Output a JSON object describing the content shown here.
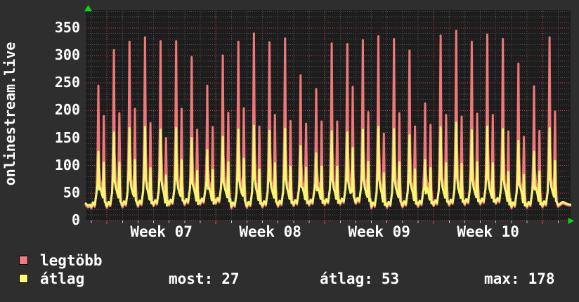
{
  "vertical_title": "onlinestream.live",
  "legend": [
    {
      "label": "legtöbb",
      "color": "#f47a7d"
    },
    {
      "label": "átlag",
      "color": "#fafa78"
    }
  ],
  "stats": [
    {
      "label": "most:",
      "value": "27"
    },
    {
      "label": "átlag:",
      "value": "53"
    },
    {
      "label": "max:",
      "value": "178"
    }
  ],
  "colors": {
    "outer_background": "#2e2e2e",
    "plot_background": "#1d1d1d",
    "minor_grid": "#4f4f4f",
    "major_grid": "#c04545",
    "day_tick": "#cccccc",
    "week_tick": "#ff4040",
    "axis_arrow": "#00dd00",
    "text": "#ffffff",
    "series_max": "#f07878",
    "series_avg": "#f7f772"
  },
  "chart_data": {
    "type": "line",
    "title": "onlinestream.live",
    "legend_position": "bottom-left",
    "grid": true,
    "y_axis": {
      "min": 0,
      "max": 383,
      "major_step": 50,
      "minor_step": 10,
      "tick_labels": [
        "0",
        "50",
        "100",
        "150",
        "200",
        "250",
        "300",
        "350"
      ]
    },
    "x_axis": {
      "unit": "day",
      "days_total": 31,
      "days_shown_from": -0.36,
      "days_shown_to": 30.8,
      "week_boundaries_day": [
        1,
        8,
        15,
        22,
        29
      ],
      "week_labels": [
        "Week 07",
        "Week 08",
        "Week 09",
        "Week 10"
      ]
    },
    "series_meta": [
      {
        "name": "legtöbb",
        "color": "#f07878",
        "role": "daily maximum viewers"
      },
      {
        "name": "átlag",
        "color": "#f7f772",
        "role": "daily average viewers"
      }
    ],
    "summary": {
      "most": 27,
      "atlag": 53,
      "max": 178
    },
    "baseline_level": 25,
    "days": [
      {
        "max": 245,
        "avg": 125,
        "mid": 190,
        "mid_avg": 105
      },
      {
        "max": 310,
        "avg": 160,
        "mid": 195,
        "mid_avg": 105
      },
      {
        "max": 325,
        "avg": 168,
        "mid": 203,
        "mid_avg": 110
      },
      {
        "max": 333,
        "avg": 170,
        "mid": 177,
        "mid_avg": 95
      },
      {
        "max": 326,
        "avg": 165,
        "mid": 150,
        "mid_avg": 82
      },
      {
        "max": 326,
        "avg": 168,
        "mid": 203,
        "mid_avg": 110
      },
      {
        "max": 297,
        "avg": 150,
        "mid": 165,
        "mid_avg": 90
      },
      {
        "max": 245,
        "avg": 128,
        "mid": 170,
        "mid_avg": 92
      },
      {
        "max": 300,
        "avg": 152,
        "mid": 196,
        "mid_avg": 106
      },
      {
        "max": 325,
        "avg": 165,
        "mid": 204,
        "mid_avg": 112
      },
      {
        "max": 340,
        "avg": 172,
        "mid": 171,
        "mid_avg": 93
      },
      {
        "max": 324,
        "avg": 163,
        "mid": 192,
        "mid_avg": 104
      },
      {
        "max": 331,
        "avg": 167,
        "mid": 181,
        "mid_avg": 98
      },
      {
        "max": 264,
        "avg": 135,
        "mid": 176,
        "mid_avg": 96
      },
      {
        "max": 239,
        "avg": 122,
        "mid": 180,
        "mid_avg": 98
      },
      {
        "max": 322,
        "avg": 162,
        "mid": 180,
        "mid_avg": 98
      },
      {
        "max": 321,
        "avg": 160,
        "mid": 243,
        "mid_avg": 132
      },
      {
        "max": 328,
        "avg": 165,
        "mid": 197,
        "mid_avg": 107
      },
      {
        "max": 335,
        "avg": 170,
        "mid": 158,
        "mid_avg": 86
      },
      {
        "max": 330,
        "avg": 166,
        "mid": 195,
        "mid_avg": 106
      },
      {
        "max": 309,
        "avg": 155,
        "mid": 171,
        "mid_avg": 93
      },
      {
        "max": 213,
        "avg": 110,
        "mid": 174,
        "mid_avg": 95
      },
      {
        "max": 336,
        "avg": 170,
        "mid": 192,
        "mid_avg": 104
      },
      {
        "max": 345,
        "avg": 178,
        "mid": 189,
        "mid_avg": 103
      },
      {
        "max": 325,
        "avg": 164,
        "mid": 194,
        "mid_avg": 106
      },
      {
        "max": 338,
        "avg": 171,
        "mid": 192,
        "mid_avg": 104
      },
      {
        "max": 330,
        "avg": 166,
        "mid": 162,
        "mid_avg": 88
      },
      {
        "max": 285,
        "avg": 145,
        "mid": 152,
        "mid_avg": 83
      },
      {
        "max": 244,
        "avg": 125,
        "mid": 163,
        "mid_avg": 89
      },
      {
        "max": 333,
        "avg": 168,
        "mid": 198,
        "mid_avg": 108
      },
      {
        "max": 30,
        "avg": 29,
        "mid": 0,
        "mid_avg": 0
      }
    ]
  }
}
